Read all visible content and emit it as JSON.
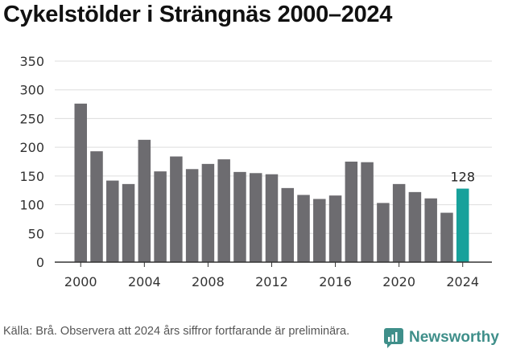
{
  "title": "Cykelstölder i Strängnäs 2000–2024",
  "source_text": "Källa: Brå. Observera att 2024 års siffror fortfarande är preliminära.",
  "brand": {
    "name": "Newsworthy",
    "icon": "newsworthy-logo-icon",
    "color": "#3f8f8a"
  },
  "colors": {
    "bar": "#6d6c70",
    "highlight": "#17a19b",
    "grid": "#dddddd",
    "axis": "#333333",
    "text": "#333333"
  },
  "chart_data": {
    "type": "bar",
    "title": "Cykelstölder i Strängnäs 2000–2024",
    "xlabel": "",
    "ylabel": "",
    "categories": [
      "2000",
      "2001",
      "2002",
      "2003",
      "2004",
      "2005",
      "2006",
      "2007",
      "2008",
      "2009",
      "2010",
      "2011",
      "2012",
      "2013",
      "2014",
      "2015",
      "2016",
      "2017",
      "2018",
      "2019",
      "2020",
      "2021",
      "2022",
      "2023",
      "2024"
    ],
    "values": [
      276,
      193,
      142,
      136,
      213,
      158,
      184,
      162,
      171,
      179,
      157,
      155,
      153,
      129,
      117,
      110,
      116,
      175,
      174,
      103,
      136,
      122,
      111,
      86,
      128
    ],
    "ylim": [
      0,
      350
    ],
    "yticks": [
      "0",
      "50",
      "100",
      "150",
      "200",
      "250",
      "300",
      "350"
    ],
    "xticks": [
      "2000",
      "2004",
      "2008",
      "2012",
      "2016",
      "2020",
      "2024"
    ],
    "highlight": {
      "category": "2024",
      "label": "128"
    },
    "grid": true
  }
}
